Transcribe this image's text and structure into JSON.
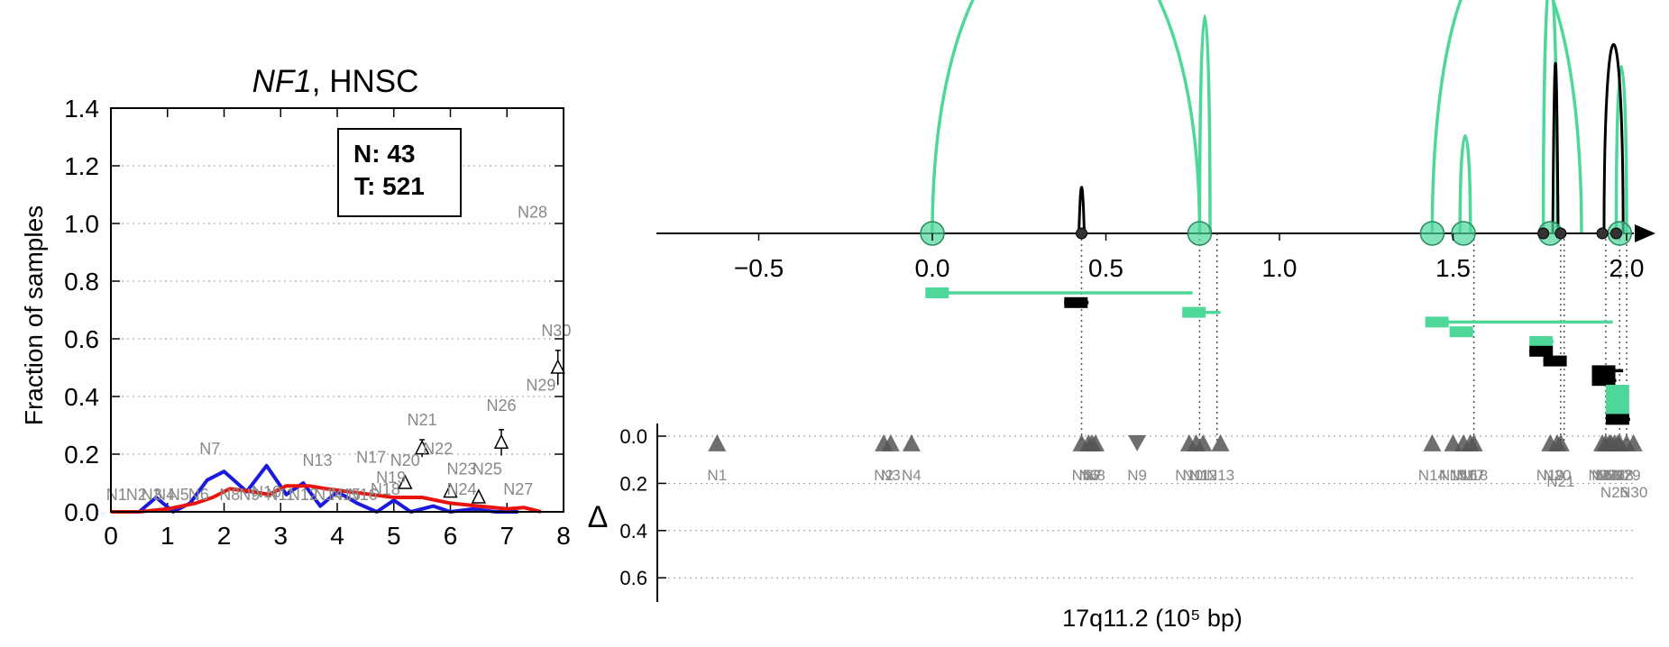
{
  "figure": {
    "gene_title": "NF1",
    "title_suffix": ", HNSC"
  },
  "colors": {
    "normal": "#1a1adf",
    "tumor": "#e8140c",
    "arc_green": "#4fd79a",
    "arc_black": "#000000",
    "marker_gray": "#555555",
    "label_gray": "#888888"
  },
  "chart_data": [
    {
      "type": "line",
      "title": "NF1, HNSC",
      "xlabel": "",
      "ylabel": "Fraction of samples",
      "xlim": [
        0,
        8
      ],
      "ylim": [
        0,
        1.4
      ],
      "xticks": [
        "0",
        "1",
        "2",
        "3",
        "4",
        "5",
        "6",
        "7",
        "8"
      ],
      "yticks": [
        "0.0",
        "0.2",
        "0.4",
        "0.6",
        "0.8",
        "1.0",
        "1.2",
        "1.4"
      ],
      "grid": "y dotted",
      "legend_box": [
        "N: 43",
        "T: 521"
      ],
      "series": [
        {
          "color": "blue",
          "x": [
            0,
            0.5,
            0.8,
            1.1,
            1.4,
            1.7,
            2.0,
            2.4,
            2.75,
            3.1,
            3.4,
            3.7,
            4.0,
            4.35,
            4.7,
            5.0,
            5.3,
            5.7,
            6.0,
            6.4,
            6.8,
            7.2
          ],
          "y": [
            0,
            0,
            0.05,
            0,
            0.03,
            0.11,
            0.14,
            0.07,
            0.16,
            0.06,
            0.1,
            0.02,
            0.07,
            0.03,
            0,
            0.04,
            0,
            0.02,
            0,
            0.01,
            0,
            0
          ]
        },
        {
          "color": "red",
          "x": [
            0,
            0.5,
            1.0,
            1.5,
            1.8,
            2.1,
            2.5,
            2.8,
            3.1,
            3.5,
            3.8,
            4.2,
            4.6,
            5.0,
            5.5,
            6.0,
            6.5,
            7.0,
            7.3,
            7.6
          ],
          "y": [
            0,
            0,
            0.01,
            0.03,
            0.05,
            0.08,
            0.07,
            0.06,
            0.09,
            0.09,
            0.08,
            0.07,
            0.06,
            0.05,
            0.05,
            0.03,
            0.02,
            0.01,
            0.015,
            0
          ]
        }
      ],
      "triangle_points": [
        {
          "x": 5.2,
          "y": 0.1,
          "err": 0.01
        },
        {
          "x": 5.5,
          "y": 0.22,
          "err": 0.03
        },
        {
          "x": 6.0,
          "y": 0.07,
          "err": 0.01
        },
        {
          "x": 6.5,
          "y": 0.05,
          "err": 0.01
        },
        {
          "x": 6.9,
          "y": 0.24,
          "err": 0.045
        },
        {
          "x": 7.9,
          "y": 0.5,
          "err": 0.06
        }
      ],
      "annotations": [
        {
          "text": "N1",
          "x": 0.1,
          "y": 0.04
        },
        {
          "text": "N2",
          "x": 0.45,
          "y": 0.04
        },
        {
          "text": "N3",
          "x": 0.72,
          "y": 0.04
        },
        {
          "text": "N4",
          "x": 0.95,
          "y": 0.04
        },
        {
          "text": "N5",
          "x": 1.2,
          "y": 0.04
        },
        {
          "text": "N6",
          "x": 1.55,
          "y": 0.04
        },
        {
          "text": "N7",
          "x": 1.75,
          "y": 0.2
        },
        {
          "text": "N8",
          "x": 2.1,
          "y": 0.04
        },
        {
          "text": "N9",
          "x": 2.45,
          "y": 0.04
        },
        {
          "text": "N10",
          "x": 2.75,
          "y": 0.05
        },
        {
          "text": "N11",
          "x": 3.0,
          "y": 0.04
        },
        {
          "text": "N12",
          "x": 3.4,
          "y": 0.04
        },
        {
          "text": "N13",
          "x": 3.65,
          "y": 0.16
        },
        {
          "text": "N14",
          "x": 3.85,
          "y": 0.04
        },
        {
          "text": "N15",
          "x": 4.15,
          "y": 0.04
        },
        {
          "text": "N16",
          "x": 4.45,
          "y": 0.04
        },
        {
          "text": "N17",
          "x": 4.6,
          "y": 0.17
        },
        {
          "text": "N18",
          "x": 4.85,
          "y": 0.06
        },
        {
          "text": "N19",
          "x": 4.95,
          "y": 0.1
        },
        {
          "text": "N20",
          "x": 5.2,
          "y": 0.16
        },
        {
          "text": "N21",
          "x": 5.5,
          "y": 0.3
        },
        {
          "text": "N22",
          "x": 5.78,
          "y": 0.2
        },
        {
          "text": "N23",
          "x": 6.2,
          "y": 0.13
        },
        {
          "text": "N24",
          "x": 6.2,
          "y": 0.06
        },
        {
          "text": "N25",
          "x": 6.65,
          "y": 0.13
        },
        {
          "text": "N26",
          "x": 6.9,
          "y": 0.35
        },
        {
          "text": "N27",
          "x": 7.2,
          "y": 0.06
        },
        {
          "text": "N28",
          "x": 7.45,
          "y": 1.02
        },
        {
          "text": "N29",
          "x": 7.6,
          "y": 0.42
        },
        {
          "text": "N30",
          "x": 7.87,
          "y": 0.61
        }
      ]
    },
    {
      "type": "arc-diagram",
      "xlabel": "17q11.2 (10⁵ bp)",
      "xlim": [
        -0.78,
        2.1
      ],
      "xticks": [
        -0.5,
        0.0,
        0.5,
        1.0,
        1.5,
        2.0
      ],
      "xtick_labels": [
        "−0.5",
        "0.0",
        "0.5",
        "1.0",
        "1.5",
        "2.0"
      ],
      "ylabel": "Δ",
      "ylim": [
        0,
        0.7
      ],
      "yticks": [
        "0.0",
        "0.2",
        "0.4",
        "0.6"
      ],
      "grid": "y dotted",
      "arcs": [
        {
          "from": 0.0,
          "to": 0.77,
          "height": 1.0,
          "color": "green"
        },
        {
          "from": 0.77,
          "to": 0.8,
          "height": 0.69,
          "color": "green"
        },
        {
          "from": 1.44,
          "to": 1.87,
          "height": 0.92,
          "color": "green"
        },
        {
          "from": 1.52,
          "to": 1.55,
          "height": 0.31,
          "color": "green"
        },
        {
          "from": 1.76,
          "to": 1.8,
          "height": 0.82,
          "color": "green"
        },
        {
          "from": 1.97,
          "to": 2.0,
          "height": 0.53,
          "color": "green"
        },
        {
          "from": 0.43,
          "to": 0.43,
          "height": 0.22,
          "color": "black"
        },
        {
          "from": 1.795,
          "to": 1.795,
          "height": 0.81,
          "color": "black"
        },
        {
          "from": 1.935,
          "to": 1.99,
          "height": 0.6,
          "color": "black"
        }
      ],
      "green_nodes": [
        0.0,
        0.77,
        1.44,
        1.53,
        1.78,
        1.98
      ],
      "black_nodes": [
        0.43,
        1.76,
        1.81,
        1.93,
        1.97
      ],
      "bars": [
        {
          "x0": -0.02,
          "x1": 0.75,
          "level": 0,
          "color": "green"
        },
        {
          "x0": 0.38,
          "x1": 0.45,
          "level": 1,
          "color": "black"
        },
        {
          "x0": 0.72,
          "x1": 0.83,
          "level": 2,
          "color": "green"
        },
        {
          "x0": 1.42,
          "x1": 1.96,
          "level": 3,
          "color": "green"
        },
        {
          "x0": 1.49,
          "x1": 1.56,
          "level": 4,
          "color": "green"
        },
        {
          "x0": 1.72,
          "x1": 1.79,
          "level": 5,
          "color": "green"
        },
        {
          "x0": 1.72,
          "x1": 1.78,
          "level": 6,
          "color": "black"
        },
        {
          "x0": 1.76,
          "x1": 1.81,
          "level": 7,
          "color": "black"
        },
        {
          "x0": 1.9,
          "x1": 1.99,
          "level": 8,
          "color": "black"
        },
        {
          "x0": 1.9,
          "x1": 1.97,
          "level": 9,
          "color": "black"
        },
        {
          "x0": 1.94,
          "x1": 2.0,
          "level": 10,
          "color": "green"
        },
        {
          "x0": 1.94,
          "x1": 2.0,
          "level": 11,
          "color": "green"
        },
        {
          "x0": 1.94,
          "x1": 2.0,
          "level": 12,
          "color": "green"
        },
        {
          "x0": 1.94,
          "x1": 2.01,
          "level": 13,
          "color": "black"
        }
      ],
      "guides": [
        0.43,
        0.77,
        0.82,
        1.56,
        1.81,
        1.82,
        1.94,
        1.98,
        2.0
      ],
      "markers": [
        {
          "text": "N1",
          "x": -0.62,
          "dir": "up"
        },
        {
          "text": "N2",
          "x": -0.14,
          "dir": "up"
        },
        {
          "text": "N3",
          "x": -0.12,
          "dir": "up"
        },
        {
          "text": "N4",
          "x": -0.06,
          "dir": "up"
        },
        {
          "text": "N5",
          "x": 0.43,
          "dir": "up"
        },
        {
          "text": "N6",
          "x": 0.45,
          "dir": "up"
        },
        {
          "text": "N7",
          "x": 0.46,
          "dir": "up"
        },
        {
          "text": "N8",
          "x": 0.47,
          "dir": "up"
        },
        {
          "text": "N9",
          "x": 0.59,
          "dir": "down"
        },
        {
          "text": "N10",
          "x": 0.74,
          "dir": "up"
        },
        {
          "text": "N11",
          "x": 0.76,
          "dir": "up"
        },
        {
          "text": "N12",
          "x": 0.78,
          "dir": "up"
        },
        {
          "text": "N13",
          "x": 0.83,
          "dir": "up"
        },
        {
          "text": "N14",
          "x": 1.44,
          "dir": "up"
        },
        {
          "text": "N15",
          "x": 1.5,
          "dir": "up"
        },
        {
          "text": "N16",
          "x": 1.53,
          "dir": "up"
        },
        {
          "text": "N17",
          "x": 1.55,
          "dir": "up"
        },
        {
          "text": "N18",
          "x": 1.56,
          "dir": "up"
        },
        {
          "text": "N19",
          "x": 1.78,
          "dir": "up"
        },
        {
          "text": "N20",
          "x": 1.8,
          "dir": "up"
        },
        {
          "text": "N21",
          "x": 1.81,
          "dir": "up"
        },
        {
          "text": "N22",
          "x": 1.93,
          "dir": "up"
        },
        {
          "text": "N23",
          "x": 1.94,
          "dir": "up"
        },
        {
          "text": "N24",
          "x": 1.95,
          "dir": "up"
        },
        {
          "text": "N25",
          "x": 1.955,
          "dir": "up"
        },
        {
          "text": "N26",
          "x": 1.965,
          "dir": "up"
        },
        {
          "text": "N27",
          "x": 1.975,
          "dir": "up"
        },
        {
          "text": "N28",
          "x": 1.98,
          "dir": "up"
        },
        {
          "text": "N29",
          "x": 2.0,
          "dir": "up"
        },
        {
          "text": "N30",
          "x": 2.02,
          "dir": "up"
        }
      ]
    }
  ]
}
